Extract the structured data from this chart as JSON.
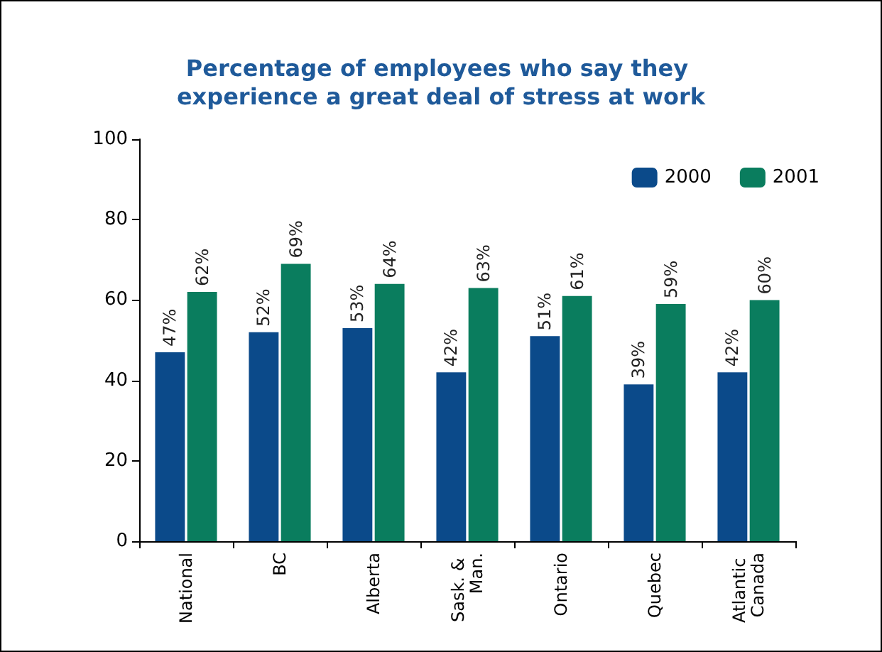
{
  "chart_data": {
    "type": "bar",
    "title": "Percentage of employees who say they experience a great deal of stress at work",
    "categories": [
      "National",
      "BC",
      "Alberta",
      "Sask. & Man.",
      "Ontario",
      "Quebec",
      "Atlantic Canada"
    ],
    "series": [
      {
        "name": "2000",
        "color": "#0b4a8a",
        "values": [
          47,
          52,
          53,
          42,
          51,
          39,
          42
        ],
        "value_labels": [
          "47%",
          "52%",
          "53%",
          "42%",
          "51%",
          "39%",
          "42%"
        ]
      },
      {
        "name": "2001",
        "color": "#0a7d5e",
        "values": [
          62,
          69,
          64,
          63,
          61,
          59,
          60
        ],
        "value_labels": [
          "62%",
          "69%",
          "64%",
          "63%",
          "61%",
          "59%",
          "60%"
        ]
      }
    ],
    "ylim": [
      0,
      100
    ],
    "yticks": [
      0,
      20,
      40,
      60,
      80,
      100
    ],
    "grid": false,
    "legend": "top right"
  }
}
